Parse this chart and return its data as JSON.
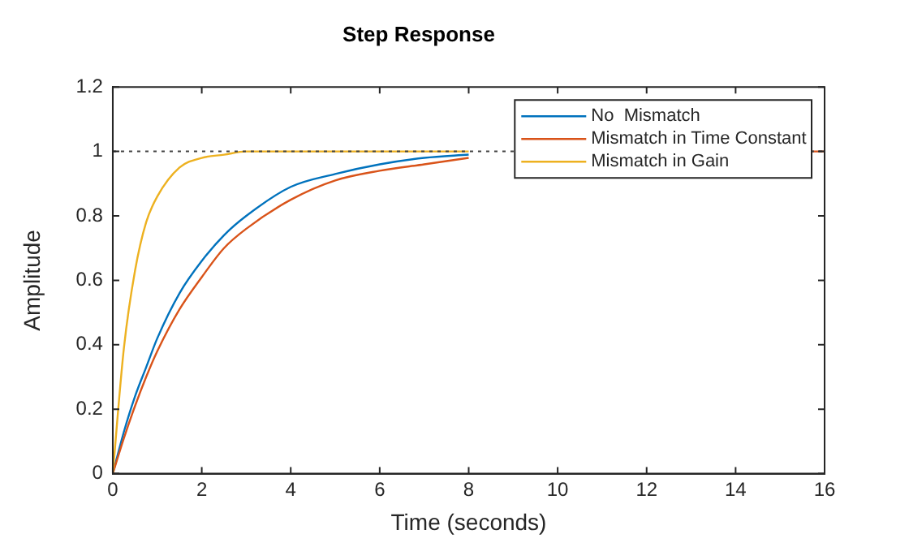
{
  "chart_data": {
    "type": "line",
    "title": "Step Response",
    "xlabel": "Time (seconds)",
    "ylabel": "Amplitude",
    "x": [
      0,
      0.25,
      0.5,
      0.75,
      1,
      1.5,
      2,
      2.5,
      3,
      4,
      5,
      6,
      7,
      8,
      10,
      12,
      14,
      15.7,
      16
    ],
    "series": [
      {
        "name": "No  Mismatch",
        "color": "#0072bd",
        "values": [
          0,
          0.13,
          0.24,
          0.33,
          0.42,
          0.56,
          0.66,
          0.74,
          0.8,
          0.89,
          0.93,
          0.96,
          0.98,
          0.99,
          null,
          null,
          null,
          null,
          null
        ]
      },
      {
        "name": "Mismatch in Time Constant",
        "color": "#d95319",
        "values": [
          0,
          0.11,
          0.21,
          0.3,
          0.38,
          0.51,
          0.61,
          0.7,
          0.76,
          0.85,
          0.91,
          0.94,
          0.96,
          0.98,
          null,
          null,
          null,
          1,
          1
        ]
      },
      {
        "name": "Mismatch in Gain",
        "color": "#edb120",
        "values": [
          0,
          0.39,
          0.63,
          0.78,
          0.86,
          0.95,
          0.98,
          0.99,
          1,
          1,
          1,
          1,
          1,
          1,
          null,
          null,
          null,
          null,
          null
        ]
      }
    ],
    "xlim": [
      0,
      16
    ],
    "xticks": [
      0,
      2,
      4,
      6,
      8,
      10,
      12,
      14,
      16
    ],
    "ylim": [
      0,
      1.2
    ],
    "yticks": [
      0,
      0.2,
      0.4,
      0.6,
      0.8,
      1,
      1.2
    ],
    "ref_lines": [
      {
        "axis": "y",
        "value": 1,
        "color": "#444444",
        "line_style": "dotted"
      }
    ],
    "legend": "top right",
    "grid": false,
    "marker": "none",
    "line_style": "solid"
  }
}
